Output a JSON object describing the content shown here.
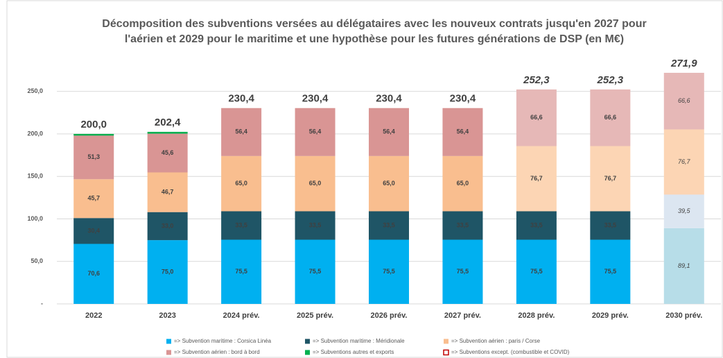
{
  "chart_data": {
    "type": "stacked_bar",
    "title": "Décomposition des subventions versées au délégataires avec les nouveux contrats jusqu'en 2027 pour l'aérien et 2029 pour le maritime et une hypothèse pour les futures générations de DSP (en M€)",
    "categories": [
      "2022",
      "2023",
      "2024 prév.",
      "2025 prév.",
      "2026 prév.",
      "2027 prév.",
      "2028 prév.",
      "2029 prév.",
      "2030 prév."
    ],
    "series": [
      {
        "name": "=> Subvention maritime : Corsica Linéa",
        "color": "#00b0f0",
        "colors": [
          "#00b0f0",
          "#00b0f0",
          "#00b0f0",
          "#00b0f0",
          "#00b0f0",
          "#00b0f0",
          "#00b0f0",
          "#00b0f0",
          "#b7dde8"
        ],
        "values": [
          70.6,
          75.0,
          75.5,
          75.5,
          75.5,
          75.5,
          75.5,
          75.5,
          89.1
        ],
        "value_labels": [
          "70,6",
          "75,0",
          "75,5",
          "75,5",
          "75,5",
          "75,5",
          "75,5",
          "75,5",
          "89,1"
        ]
      },
      {
        "name": "=> Subvention maritime : Méridionale",
        "color": "#1f5566",
        "colors": [
          "#1f5566",
          "#1f5566",
          "#1f5566",
          "#1f5566",
          "#1f5566",
          "#1f5566",
          "#1f5566",
          "#1f5566",
          "#dce6f1"
        ],
        "values": [
          30.4,
          33.0,
          33.5,
          33.5,
          33.5,
          33.5,
          33.5,
          33.5,
          39.5
        ],
        "value_labels": [
          "30,4",
          "33,0",
          "33,5",
          "33,5",
          "33,5",
          "33,5",
          "33,5",
          "33,5",
          "39,5"
        ]
      },
      {
        "name": "=> Subvention aérien : paris / Corse",
        "color": "#f9be8f",
        "colors": [
          "#f9be8f",
          "#f9be8f",
          "#f9be8f",
          "#f9be8f",
          "#f9be8f",
          "#f9be8f",
          "#fcd5b4",
          "#fcd5b4",
          "#fcd5b4"
        ],
        "values": [
          45.7,
          46.7,
          65.0,
          65.0,
          65.0,
          65.0,
          76.7,
          76.7,
          76.7
        ],
        "value_labels": [
          "45,7",
          "46,7",
          "65,0",
          "65,0",
          "65,0",
          "65,0",
          "76,7",
          "76,7",
          "76,7"
        ]
      },
      {
        "name": "=> Subvention aérien : bord à bord",
        "color": "#d99594",
        "colors": [
          "#d99594",
          "#d99594",
          "#d99594",
          "#d99594",
          "#d99594",
          "#d99594",
          "#e6b8b7",
          "#e6b8b7",
          "#e6b8b7"
        ],
        "values": [
          51.3,
          45.6,
          56.4,
          56.4,
          56.4,
          56.4,
          66.6,
          66.6,
          66.6
        ],
        "value_labels": [
          "51,3",
          "45,6",
          "56,4",
          "56,4",
          "56,4",
          "56,4",
          "66,6",
          "66,6",
          "66,6"
        ]
      },
      {
        "name": "=> Subventions autres et exports",
        "color": "#00b050",
        "values": [
          2.0,
          2.1,
          0,
          0,
          0,
          0,
          0,
          0,
          0
        ]
      },
      {
        "name": "=> Subventions except. (combustible et COVID)",
        "color": "#c00000",
        "outline": true,
        "values": [
          0,
          0,
          0,
          0,
          0,
          0,
          0,
          0,
          0
        ]
      }
    ],
    "totals": [
      200.0,
      202.4,
      230.4,
      230.4,
      230.4,
      230.4,
      252.3,
      252.3,
      271.9
    ],
    "total_labels": [
      "200,0",
      "202,4",
      "230,4",
      "230,4",
      "230,4",
      "230,4",
      "252,3",
      "252,3",
      "271,9"
    ],
    "ylim": [
      0,
      280
    ],
    "yticks": [
      {
        "value": 0,
        "label": "-"
      },
      {
        "value": 50,
        "label": "50,0"
      },
      {
        "value": 100,
        "label": "100,0"
      },
      {
        "value": 150,
        "label": "150,0"
      },
      {
        "value": 200,
        "label": "200,0"
      },
      {
        "value": 250,
        "label": "250,0"
      }
    ],
    "grid": true
  }
}
